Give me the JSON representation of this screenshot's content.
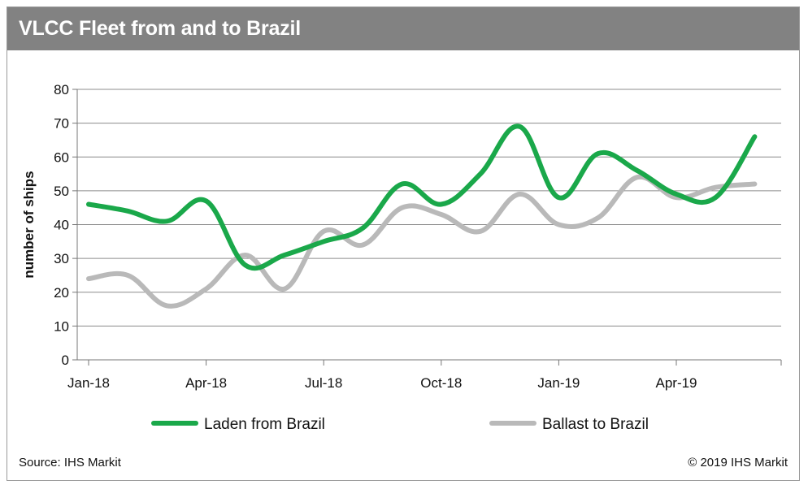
{
  "title": "VLCC Fleet from and to Brazil",
  "source": "Source: IHS Markit",
  "copyright": "© 2019 IHS Markit",
  "colors": {
    "header": "#828282",
    "laden": "#1aa84a",
    "ballast": "#b9b9b9",
    "grid": "#8c8c8c"
  },
  "chart_data": {
    "type": "line",
    "ylabel": "number of ships",
    "xlabel": "",
    "ylim": [
      0,
      80
    ],
    "yticks": [
      0,
      10,
      20,
      30,
      40,
      50,
      60,
      70,
      80
    ],
    "grid": true,
    "legend_position": "bottom",
    "x_ticks": [
      "Jan-18",
      "Apr-18",
      "Jul-18",
      "Oct-18",
      "Jan-19",
      "Apr-19"
    ],
    "x": [
      "Jan-18",
      "Feb-18",
      "Mar-18",
      "Apr-18",
      "May-18",
      "Jun-18",
      "Jul-18",
      "Aug-18",
      "Sep-18",
      "Oct-18",
      "Nov-18",
      "Dec-18",
      "Jan-19",
      "Feb-19",
      "Mar-19",
      "Apr-19",
      "May-19",
      "Jun-19"
    ],
    "series": [
      {
        "name": "Laden from Brazil",
        "values": [
          46,
          44,
          41,
          47,
          28,
          31,
          35,
          39,
          52,
          46,
          55,
          69,
          48,
          61,
          56,
          49,
          48,
          66
        ]
      },
      {
        "name": "Ballast to Brazil",
        "values": [
          24,
          25,
          16,
          21,
          31,
          21,
          38,
          34,
          45,
          43,
          38,
          49,
          40,
          42,
          54,
          48,
          51,
          52
        ]
      }
    ]
  }
}
